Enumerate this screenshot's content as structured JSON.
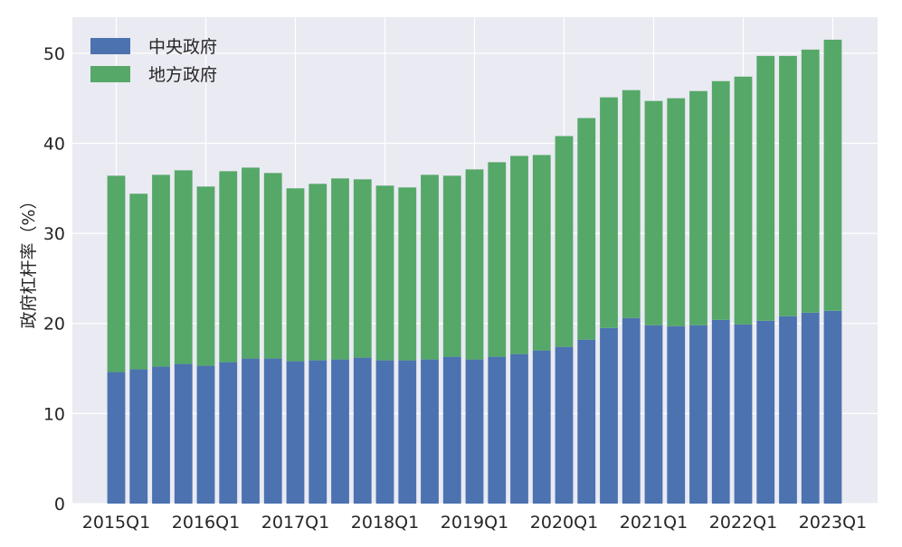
{
  "chart_data": {
    "type": "bar",
    "stacked": true,
    "categories": [
      "2015Q1",
      "2015Q2",
      "2015Q3",
      "2015Q4",
      "2016Q1",
      "2016Q2",
      "2016Q3",
      "2016Q4",
      "2017Q1",
      "2017Q2",
      "2017Q3",
      "2017Q4",
      "2018Q1",
      "2018Q2",
      "2018Q3",
      "2018Q4",
      "2019Q1",
      "2019Q2",
      "2019Q3",
      "2019Q4",
      "2020Q1",
      "2020Q2",
      "2020Q3",
      "2020Q4",
      "2021Q1",
      "2021Q2",
      "2021Q3",
      "2021Q4",
      "2022Q1",
      "2022Q2",
      "2022Q3",
      "2022Q4",
      "2023Q1"
    ],
    "xticks": [
      "2015Q1",
      "2016Q1",
      "2017Q1",
      "2018Q1",
      "2019Q1",
      "2020Q1",
      "2021Q1",
      "2022Q1",
      "2023Q1"
    ],
    "series": [
      {
        "name": "中央政府",
        "color": "#4c72b0",
        "values": [
          14.6,
          14.9,
          15.2,
          15.5,
          15.3,
          15.7,
          16.1,
          16.1,
          15.8,
          15.9,
          16.0,
          16.2,
          15.9,
          15.9,
          16.0,
          16.3,
          16.0,
          16.3,
          16.6,
          17.0,
          17.4,
          18.2,
          19.5,
          20.6,
          19.8,
          19.7,
          19.8,
          20.4,
          19.9,
          20.3,
          20.8,
          21.2,
          21.4
        ]
      },
      {
        "name": "地方政府",
        "color": "#55a868",
        "values": [
          21.8,
          19.5,
          21.3,
          21.5,
          19.9,
          21.2,
          21.2,
          20.6,
          19.2,
          19.6,
          20.1,
          19.8,
          19.4,
          19.2,
          20.5,
          20.1,
          21.1,
          21.6,
          22.0,
          21.7,
          23.4,
          24.6,
          25.6,
          25.3,
          24.9,
          25.3,
          26.0,
          26.5,
          27.5,
          29.4,
          28.9,
          29.2,
          30.1
        ]
      }
    ],
    "ylabel": "政府杠杆率（%）",
    "ylim": [
      0,
      54
    ],
    "yticks": [
      0,
      10,
      20,
      30,
      40,
      50
    ],
    "grid": true,
    "legend_position": "top-left",
    "background": "#eaeaf2"
  }
}
